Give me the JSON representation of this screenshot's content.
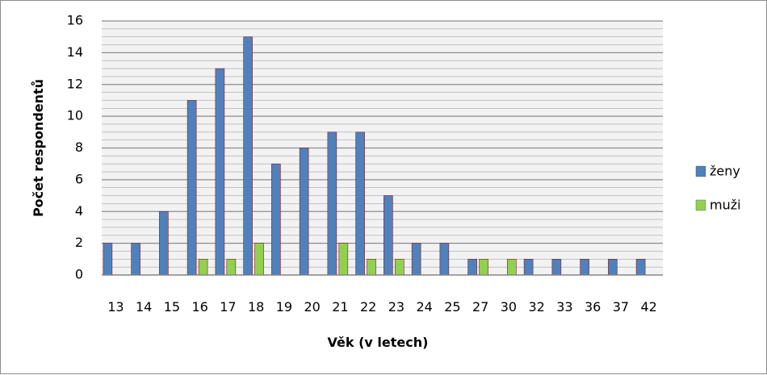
{
  "chart_data": {
    "type": "bar",
    "title": "",
    "xlabel": "Věk (v letech)",
    "ylabel": "Počet respondentů",
    "categories": [
      "13",
      "14",
      "15",
      "16",
      "17",
      "18",
      "19",
      "20",
      "21",
      "22",
      "23",
      "24",
      "25",
      "27",
      "30",
      "32",
      "33",
      "36",
      "37",
      "42"
    ],
    "series": [
      {
        "name": "ženy",
        "color": "#4f81bd",
        "values": [
          2,
          2,
          4,
          11,
          13,
          15,
          7,
          8,
          9,
          9,
          5,
          2,
          2,
          1,
          0,
          1,
          1,
          1,
          1,
          1
        ]
      },
      {
        "name": "muži",
        "color": "#92d050",
        "values": [
          0,
          0,
          0,
          1,
          1,
          2,
          0,
          0,
          2,
          1,
          1,
          0,
          0,
          1,
          1,
          0,
          0,
          0,
          0,
          0
        ]
      }
    ],
    "ylim": [
      0,
      16
    ],
    "y_ticks": [
      0,
      2,
      4,
      6,
      8,
      10,
      12,
      14,
      16
    ],
    "grid": true,
    "legend_position": "right",
    "colors": {
      "plot_background": "#f2f2f2",
      "gridline": "#8c8c8c",
      "bar_outline": "#8b1a1a"
    }
  }
}
